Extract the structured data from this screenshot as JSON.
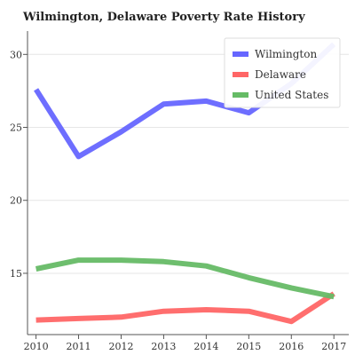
{
  "chart_data": {
    "type": "line",
    "title": "Wilmington, Delaware Poverty Rate History",
    "xlabel": "",
    "ylabel": "",
    "x": [
      2010,
      2011,
      2012,
      2013,
      2014,
      2015,
      2016,
      2017
    ],
    "x_tick_labels": [
      "2010",
      "2011",
      "2012",
      "2013",
      "2014",
      "2015",
      "2016",
      "2017"
    ],
    "y_ticks": [
      15,
      20,
      25,
      30
    ],
    "y_tick_labels": [
      "15",
      "20",
      "25",
      "30"
    ],
    "xlim": [
      2009.8,
      2017.35
    ],
    "ylim": [
      10.8,
      31.6
    ],
    "grid": "horizontal",
    "legend_position": "top-right",
    "series": [
      {
        "name": "Wilmington",
        "color": "#6666ff",
        "values": [
          27.6,
          23.0,
          24.7,
          26.6,
          26.8,
          26.0,
          28.0,
          30.7
        ]
      },
      {
        "name": "Delaware",
        "color": "#ff6666",
        "values": [
          11.8,
          11.9,
          12.0,
          12.4,
          12.5,
          12.4,
          11.7,
          13.6
        ]
      },
      {
        "name": "United States",
        "color": "#66bb66",
        "values": [
          15.3,
          15.9,
          15.9,
          15.8,
          15.5,
          14.7,
          14.0,
          13.4
        ]
      }
    ]
  }
}
